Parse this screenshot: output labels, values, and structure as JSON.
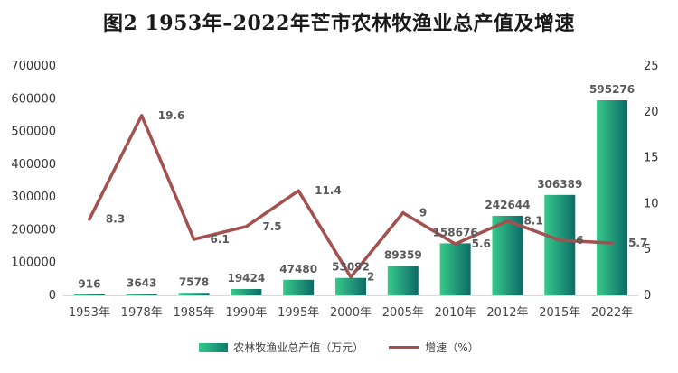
{
  "title": "图2 1953年–2022年芒市农林牧渔业总产值及增速",
  "legend": {
    "bar": "农林牧渔业总产值（万元）",
    "line": "增速（%）"
  },
  "colors": {
    "bar_light": "#37c98a",
    "bar_dark": "#0d6b68",
    "line": "#a3504f",
    "label": "#595959",
    "grid": "#e6e6e6"
  },
  "chart_data": {
    "type": "bar+line",
    "categories": [
      "1953年",
      "1978年",
      "1985年",
      "1990年",
      "1995年",
      "2000年",
      "2005年",
      "2010年",
      "2012年",
      "2015年",
      "2022年"
    ],
    "series": [
      {
        "name": "农林牧渔业总产值（万元）",
        "type": "bar",
        "axis": "left",
        "values": [
          916,
          3643,
          7578,
          19424,
          47480,
          53092,
          89359,
          158676,
          242644,
          306389,
          595276
        ],
        "labels": [
          "916",
          "3643",
          "7578",
          "19424",
          "47480",
          "53092",
          "89359",
          "158676",
          "242644",
          "306389",
          "595276"
        ]
      },
      {
        "name": "增速（%）",
        "type": "line",
        "axis": "right",
        "values": [
          8.3,
          19.6,
          6.1,
          7.5,
          11.4,
          2,
          9,
          5.6,
          8.1,
          6,
          5.7
        ],
        "labels": [
          "8.3",
          "19.6",
          "6.1",
          "7.5",
          "11.4",
          "2",
          "9",
          "5.6",
          "8.1",
          "6",
          "5.7"
        ]
      }
    ],
    "y_left": {
      "min": 0,
      "max": 700000,
      "ticks": [
        "0",
        "100000",
        "200000",
        "300000",
        "400000",
        "500000",
        "600000",
        "700000"
      ]
    },
    "y_right": {
      "min": 0,
      "max": 25,
      "ticks": [
        "0",
        "5",
        "10",
        "15",
        "20",
        "25"
      ]
    },
    "grid": false,
    "legend_position": "bottom"
  }
}
